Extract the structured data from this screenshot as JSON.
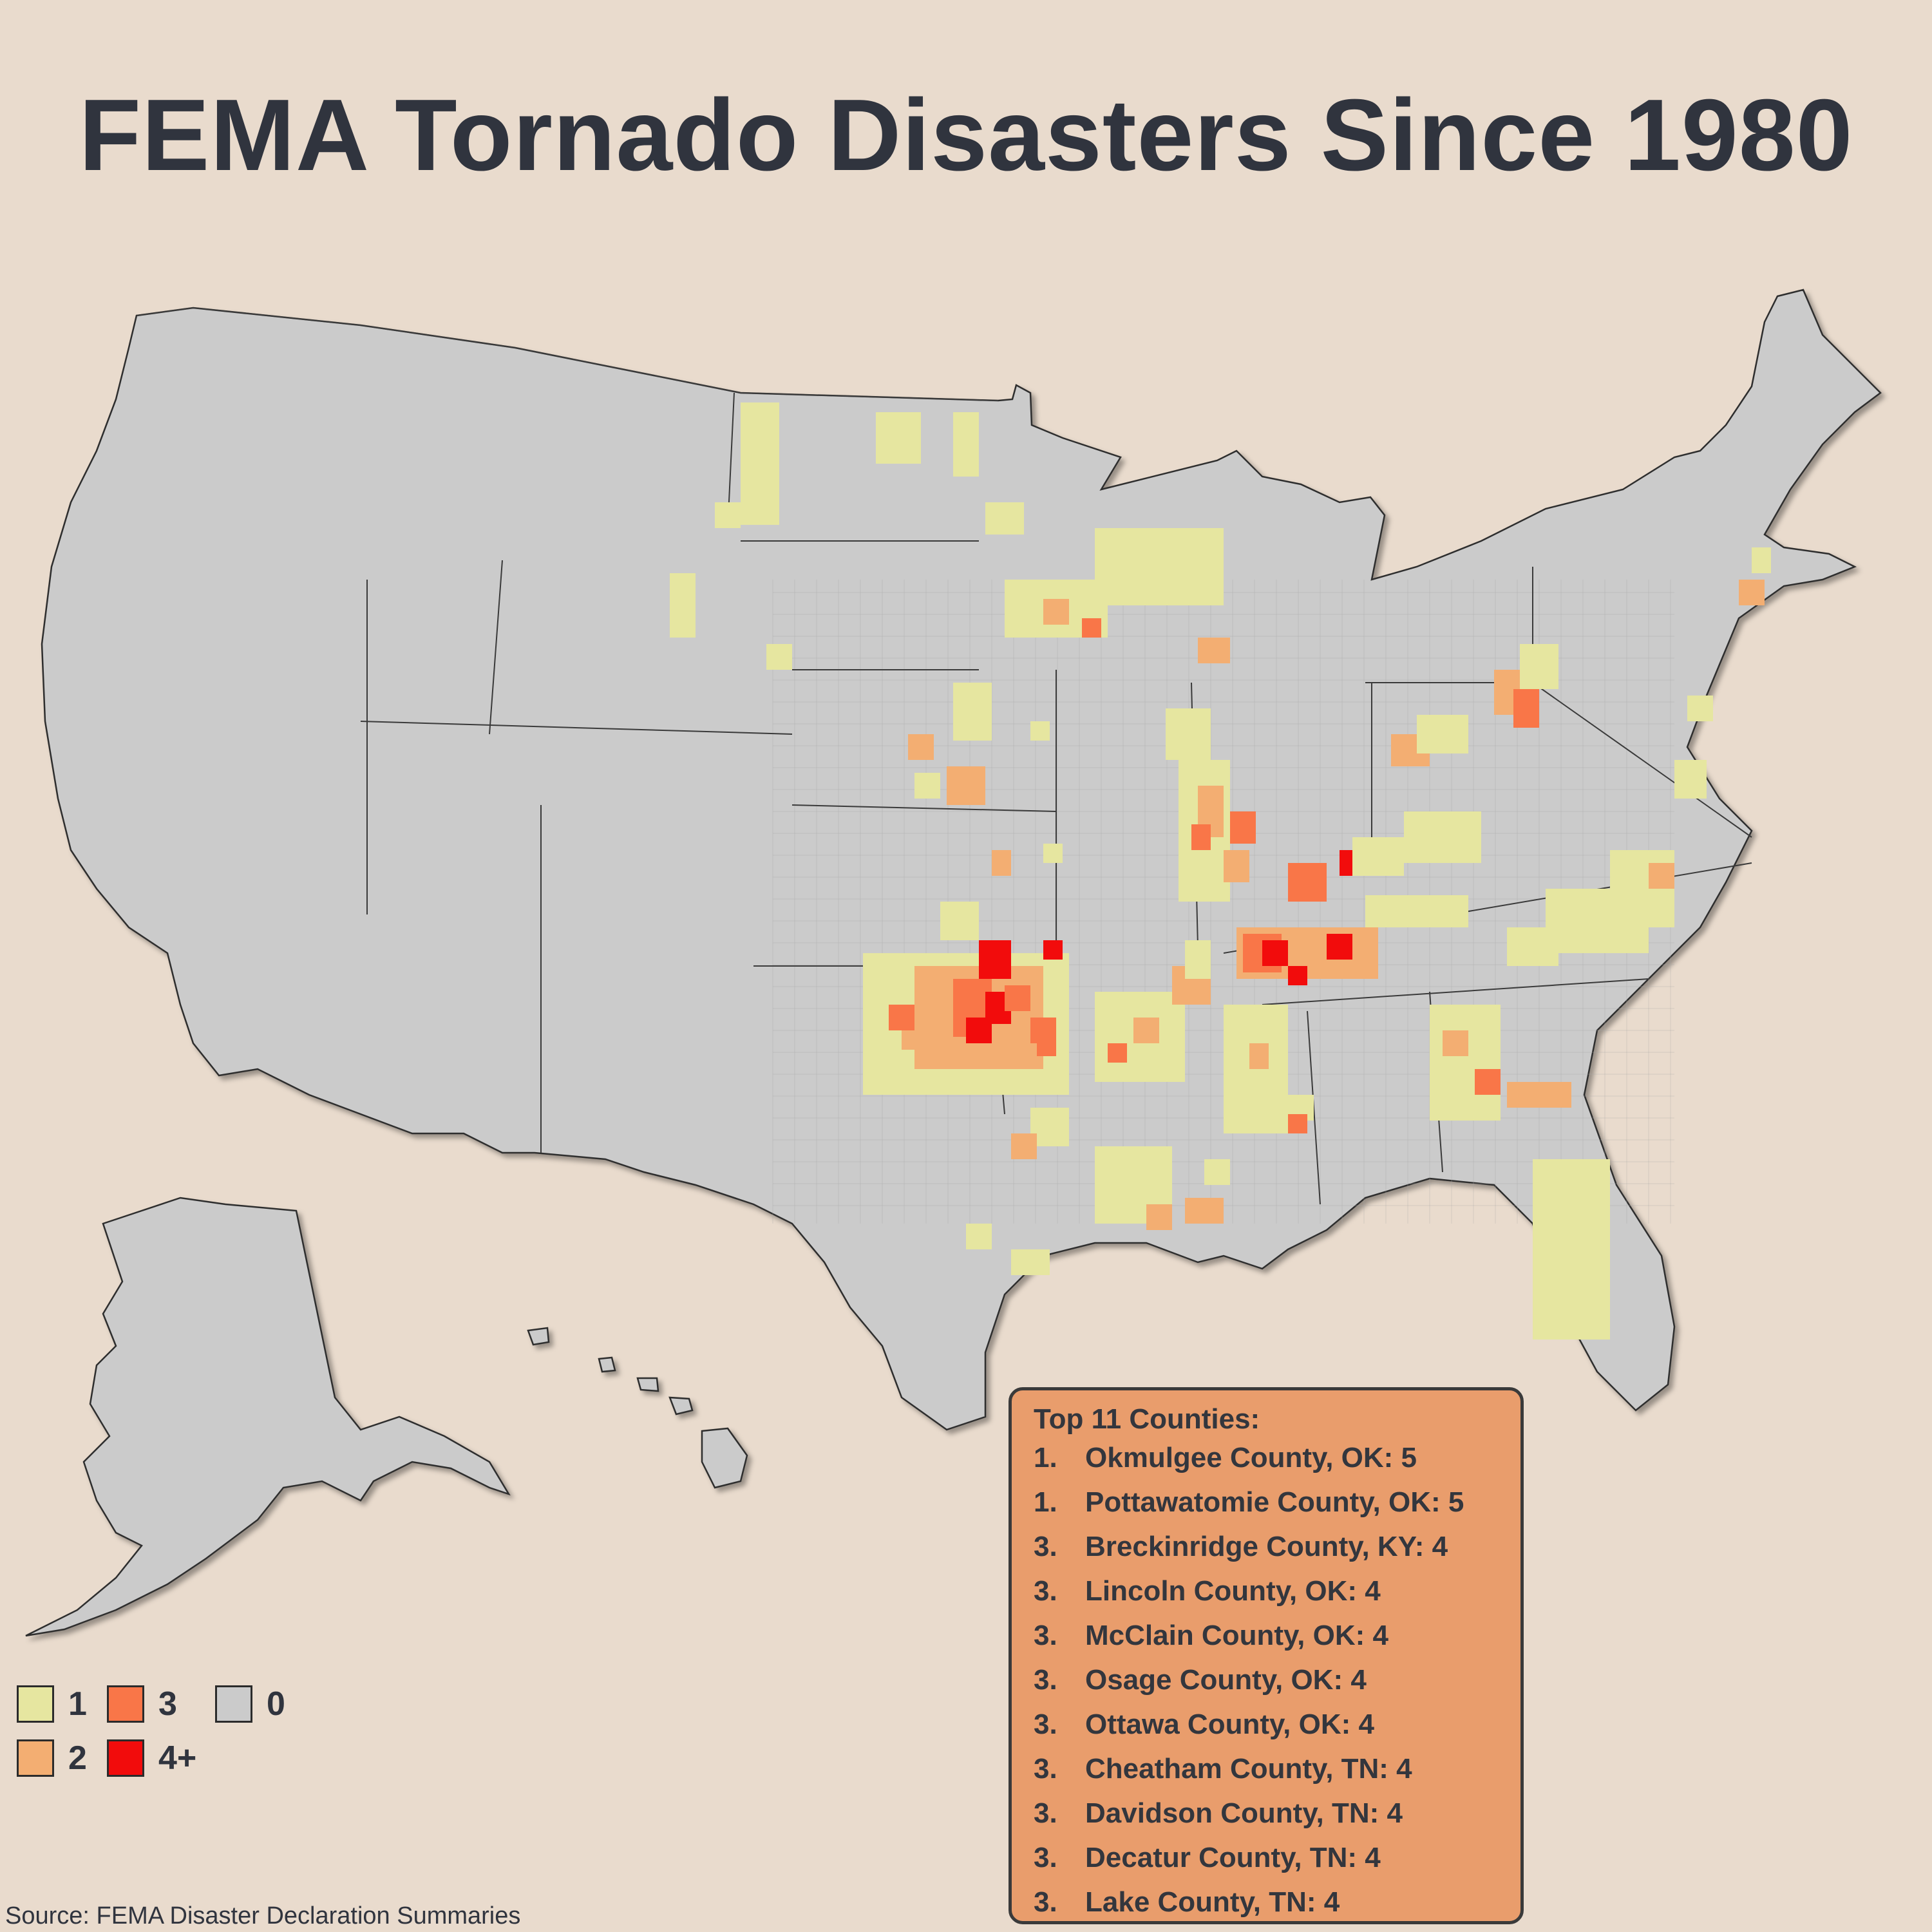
{
  "title": "FEMA Tornado Disasters Since 1980",
  "source": "Source: FEMA Disaster Declaration Summaries",
  "colors": {
    "background": "#e9dbcd",
    "county_0": "#cbcbcb",
    "count_1": "#e6e6a0",
    "count_2": "#f3ae72",
    "count_3": "#f97648",
    "count_4_plus": "#f20c0c",
    "box_fill": "#e99d6c"
  },
  "legend": {
    "items": [
      {
        "label": "1",
        "color": "#e6e6a0"
      },
      {
        "label": "3",
        "color": "#f97648"
      },
      {
        "label": "0",
        "color": "#cbcbcb"
      },
      {
        "label": "2",
        "color": "#f3ae72"
      },
      {
        "label": "4+",
        "color": "#f20c0c"
      }
    ]
  },
  "top_counties": {
    "title": "Top 11 Counties:",
    "items": [
      {
        "rank": "1.",
        "text": "Okmulgee County, OK: 5"
      },
      {
        "rank": "1.",
        "text": "Pottawatomie County, OK: 5"
      },
      {
        "rank": "3.",
        "text": "Breckinridge County, KY: 4"
      },
      {
        "rank": "3.",
        "text": "Lincoln County, OK: 4"
      },
      {
        "rank": "3.",
        "text": "McClain County, OK: 4"
      },
      {
        "rank": "3.",
        "text": "Osage County, OK: 4"
      },
      {
        "rank": "3.",
        "text": "Ottawa County, OK: 4"
      },
      {
        "rank": "3.",
        "text": "Cheatham County, TN: 4"
      },
      {
        "rank": "3.",
        "text": "Davidson County, TN: 4"
      },
      {
        "rank": "3.",
        "text": "Decatur County, TN: 4"
      },
      {
        "rank": "3.",
        "text": "Lake County, TN: 4"
      }
    ]
  }
}
